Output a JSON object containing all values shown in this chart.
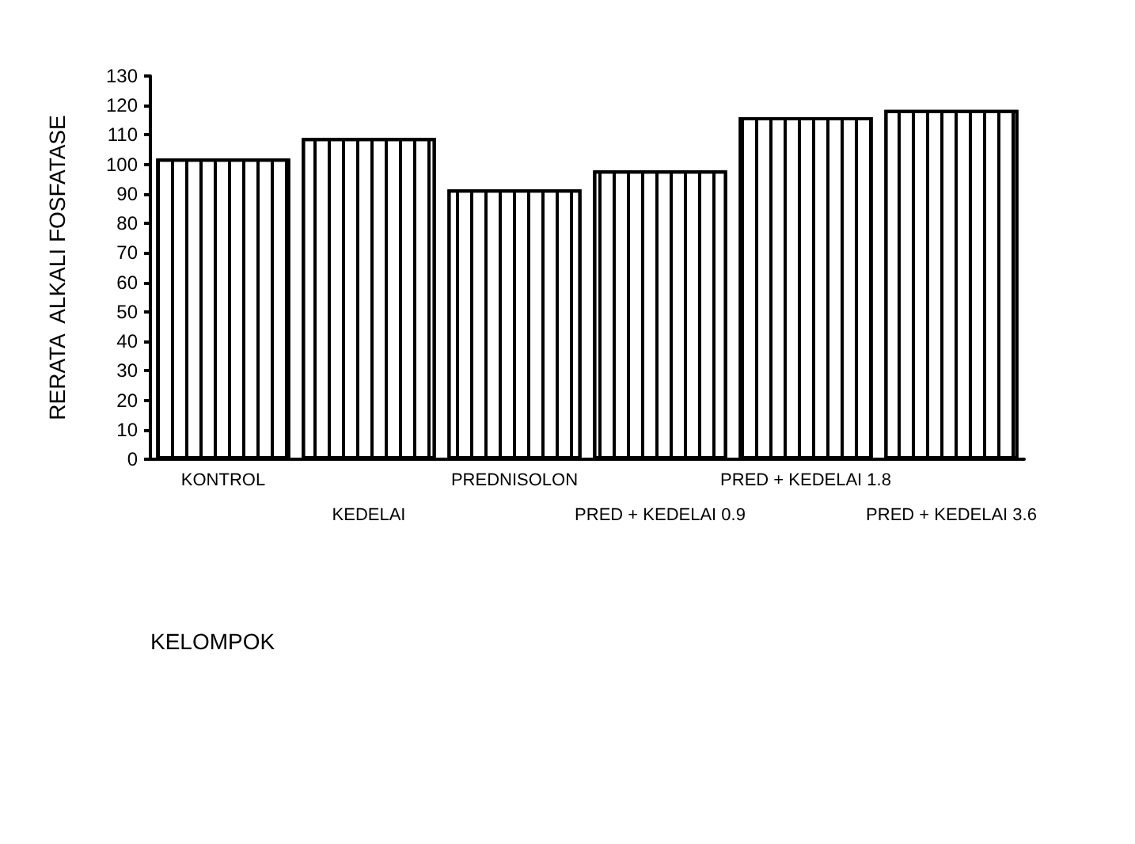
{
  "chart_data": {
    "type": "bar",
    "xlabel": "KELOMPOK",
    "ylabel": "RERATA  ALKALI FOSFATASE",
    "categories": [
      "KONTROL",
      "KEDELAI",
      "PREDNISOLON",
      "PRED + KEDELAI 0.9",
      "PRED + KEDELAI 1.8",
      "PRED + KEDELAI 3.6"
    ],
    "values": [
      102,
      109,
      91.5,
      98,
      116,
      118.5
    ],
    "color": "#ffffff",
    "ylim": [
      0,
      130
    ],
    "yticks": [
      0,
      10,
      20,
      30,
      40,
      50,
      60,
      70,
      80,
      90,
      100,
      110,
      120,
      130
    ],
    "grid": false
  }
}
